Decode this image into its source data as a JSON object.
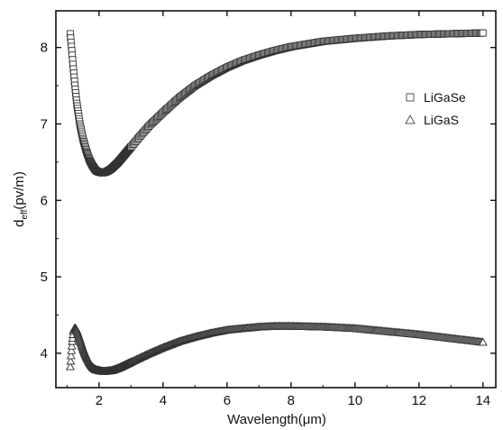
{
  "chart_data": {
    "type": "scatter",
    "xlabel": "Wavelength(μm)",
    "ylabel_main": "d",
    "ylabel_sub": "eff",
    "ylabel_rest": "(pv/m)",
    "xlim": [
      0.65,
      14.4
    ],
    "ylim": [
      3.55,
      8.48
    ],
    "xticks": [
      2,
      4,
      6,
      8,
      10,
      12,
      14
    ],
    "yticks": [
      4,
      5,
      6,
      7,
      8
    ],
    "xtick_labels": [
      "2",
      "4",
      "6",
      "8",
      "10",
      "12",
      "14"
    ],
    "ytick_labels": [
      "4",
      "5",
      "6",
      "7",
      "8"
    ],
    "legend_position": "right",
    "series": [
      {
        "name": "LiGaSe",
        "marker": "square",
        "x_range": [
          1.1,
          14
        ],
        "points": [
          [
            1.1,
            8.18
          ],
          [
            1.15,
            7.95
          ],
          [
            1.2,
            7.7
          ],
          [
            1.25,
            7.48
          ],
          [
            1.3,
            7.28
          ],
          [
            1.4,
            7.0
          ],
          [
            1.5,
            6.8
          ],
          [
            1.6,
            6.65
          ],
          [
            1.7,
            6.53
          ],
          [
            1.8,
            6.45
          ],
          [
            1.9,
            6.39
          ],
          [
            2.0,
            6.37
          ],
          [
            2.1,
            6.36
          ],
          [
            2.2,
            6.37
          ],
          [
            2.3,
            6.39
          ],
          [
            2.4,
            6.42
          ],
          [
            2.6,
            6.5
          ],
          [
            2.8,
            6.6
          ],
          [
            3.0,
            6.7
          ],
          [
            3.3,
            6.85
          ],
          [
            3.6,
            6.99
          ],
          [
            4.0,
            7.15
          ],
          [
            4.5,
            7.34
          ],
          [
            5.0,
            7.5
          ],
          [
            5.5,
            7.63
          ],
          [
            6.0,
            7.74
          ],
          [
            6.5,
            7.83
          ],
          [
            7.0,
            7.9
          ],
          [
            7.5,
            7.96
          ],
          [
            8.0,
            8.01
          ],
          [
            9.0,
            8.08
          ],
          [
            10.0,
            8.12
          ],
          [
            11.0,
            8.15
          ],
          [
            12.0,
            8.17
          ],
          [
            13.0,
            8.18
          ],
          [
            14.0,
            8.19
          ]
        ]
      },
      {
        "name": "LiGaS",
        "marker": "triangle",
        "x_range": [
          1.1,
          14
        ],
        "points": [
          [
            1.1,
            3.82
          ],
          [
            1.13,
            4.0
          ],
          [
            1.16,
            4.15
          ],
          [
            1.2,
            4.3
          ],
          [
            1.25,
            4.33
          ],
          [
            1.3,
            4.3
          ],
          [
            1.4,
            4.18
          ],
          [
            1.5,
            4.05
          ],
          [
            1.6,
            3.95
          ],
          [
            1.7,
            3.87
          ],
          [
            1.8,
            3.81
          ],
          [
            1.9,
            3.78
          ],
          [
            2.0,
            3.77
          ],
          [
            2.1,
            3.76
          ],
          [
            2.2,
            3.76
          ],
          [
            2.4,
            3.77
          ],
          [
            2.6,
            3.8
          ],
          [
            2.8,
            3.84
          ],
          [
            3.0,
            3.88
          ],
          [
            3.5,
            3.98
          ],
          [
            4.0,
            4.07
          ],
          [
            4.5,
            4.15
          ],
          [
            5.0,
            4.21
          ],
          [
            5.5,
            4.26
          ],
          [
            6.0,
            4.3
          ],
          [
            6.5,
            4.32
          ],
          [
            7.0,
            4.34
          ],
          [
            7.5,
            4.35
          ],
          [
            8.0,
            4.35
          ],
          [
            9.0,
            4.34
          ],
          [
            10.0,
            4.32
          ],
          [
            11.0,
            4.28
          ],
          [
            12.0,
            4.24
          ],
          [
            13.0,
            4.19
          ],
          [
            14.0,
            4.14
          ]
        ]
      }
    ]
  }
}
